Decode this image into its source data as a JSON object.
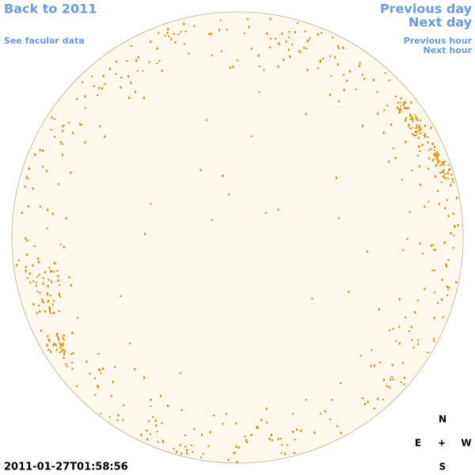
{
  "navigation": {
    "back_to_year": "Back to 2011",
    "facular_data": "See facular data",
    "previous_day": "Previous day",
    "next_day": "Next day",
    "previous_hour": "Previous hour",
    "next_hour": "Next hour"
  },
  "compass": {
    "north": "N",
    "east": "E",
    "center": "+",
    "west": "W",
    "south": "S"
  },
  "timestamp": "2011-01-27T01:58:56"
}
